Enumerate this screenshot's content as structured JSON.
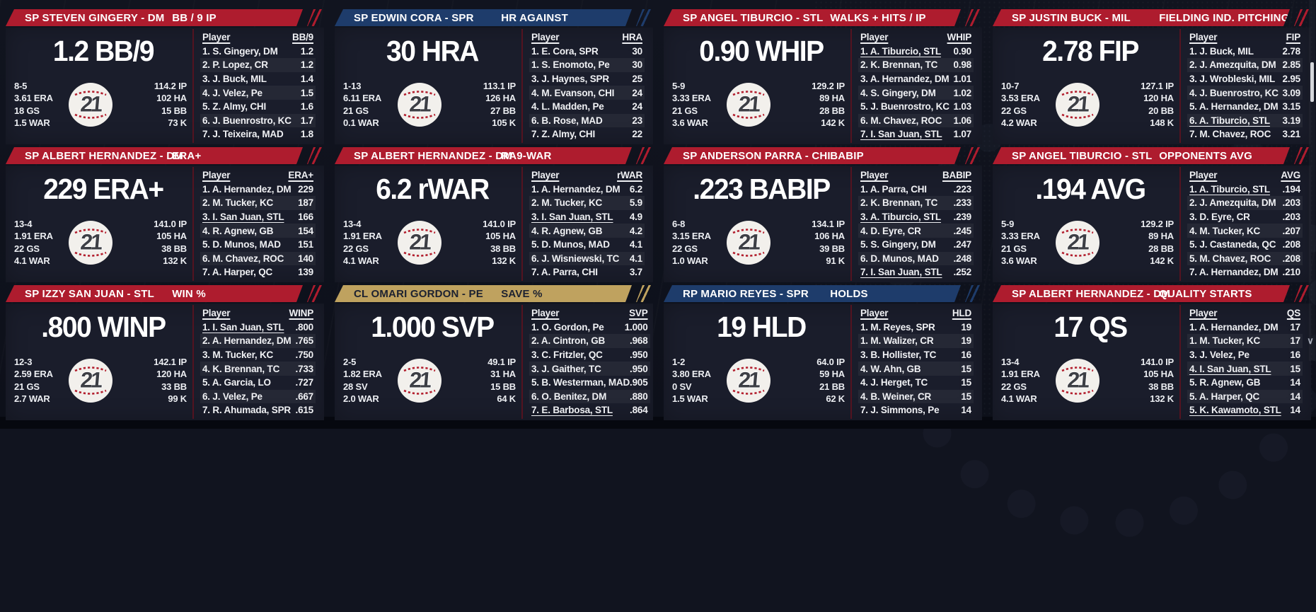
{
  "colors": {
    "red_header": "#ae1c2e",
    "navy_header": "#1e3c6b",
    "tan_header": "#bfa25f",
    "panel_bg": "#1a1d2b",
    "page_bg": "#11141f",
    "divider": "#531320",
    "ball_stitch": "#b3202f"
  },
  "icons": {
    "scroll_down_arrow": "∨",
    "baseball_icon": "baseball with number"
  },
  "panels": [
    {
      "title": "SP STEVEN GINGERY - DM",
      "category": "BB / 9 IP",
      "theme": "red",
      "big_stat": "1.2 BB/9",
      "ball_number": "21",
      "left_stats": [
        "8-5",
        "3.61 ERA",
        "18 GS",
        "1.5 WAR"
      ],
      "right_stats": [
        "114.2 IP",
        "102 HA",
        "15 BB",
        "73 K"
      ],
      "table": {
        "name_header": "Player",
        "stat_header": "BB/9",
        "rows": [
          {
            "name": "1. S. Gingery, DM",
            "value": "1.2",
            "highlight": false
          },
          {
            "name": "2. P. Lopez, CR",
            "value": "1.2",
            "highlight": false
          },
          {
            "name": "3. J. Buck, MIL",
            "value": "1.4",
            "highlight": false
          },
          {
            "name": "4. J. Velez, Pe",
            "value": "1.5",
            "highlight": false
          },
          {
            "name": "5. Z. Almy, CHI",
            "value": "1.6",
            "highlight": false
          },
          {
            "name": "6. J. Buenrostro, KC",
            "value": "1.7",
            "highlight": false
          },
          {
            "name": "7. J. Teixeira, MAD",
            "value": "1.8",
            "highlight": false
          }
        ]
      }
    },
    {
      "title": "SP EDWIN CORA - SPR",
      "category": "HR AGAINST",
      "theme": "navy",
      "big_stat": "30 HRA",
      "ball_number": "21",
      "left_stats": [
        "1-13",
        "6.11 ERA",
        "21 GS",
        "0.1 WAR"
      ],
      "right_stats": [
        "113.1 IP",
        "126 HA",
        "27 BB",
        "105 K"
      ],
      "table": {
        "name_header": "Player",
        "stat_header": "HRA",
        "rows": [
          {
            "name": "1. E. Cora, SPR",
            "value": "30",
            "highlight": false
          },
          {
            "name": "1. S. Enomoto, Pe",
            "value": "30",
            "highlight": false
          },
          {
            "name": "3. J. Haynes, SPR",
            "value": "25",
            "highlight": false
          },
          {
            "name": "4. M. Evanson, CHI",
            "value": "24",
            "highlight": false
          },
          {
            "name": "4. L. Madden, Pe",
            "value": "24",
            "highlight": false
          },
          {
            "name": "6. B. Rose, MAD",
            "value": "23",
            "highlight": false
          },
          {
            "name": "7. Z. Almy, CHI",
            "value": "22",
            "highlight": false
          }
        ]
      }
    },
    {
      "title": "SP ANGEL TIBURCIO - STL",
      "category": "WALKS + HITS / IP",
      "theme": "red",
      "big_stat": "0.90 WHIP",
      "ball_number": "21",
      "left_stats": [
        "5-9",
        "3.33 ERA",
        "21 GS",
        "3.6 WAR"
      ],
      "right_stats": [
        "129.2 IP",
        "89 HA",
        "28 BB",
        "142 K"
      ],
      "table": {
        "name_header": "Player",
        "stat_header": "WHIP",
        "rows": [
          {
            "name": "1. A. Tiburcio, STL",
            "value": "0.90",
            "highlight": true
          },
          {
            "name": "2. K. Brennan, TC",
            "value": "0.98",
            "highlight": false
          },
          {
            "name": "3. A. Hernandez, DM",
            "value": "1.01",
            "highlight": false
          },
          {
            "name": "4. S. Gingery, DM",
            "value": "1.02",
            "highlight": false
          },
          {
            "name": "5. J. Buenrostro, KC",
            "value": "1.03",
            "highlight": false
          },
          {
            "name": "6. M. Chavez, ROC",
            "value": "1.06",
            "highlight": false
          },
          {
            "name": "7. I. San Juan, STL",
            "value": "1.07",
            "highlight": true
          }
        ]
      }
    },
    {
      "title": "SP JUSTIN BUCK - MIL",
      "category": "FIELDING IND. PITCHING",
      "theme": "red",
      "big_stat": "2.78 FIP",
      "ball_number": "21",
      "left_stats": [
        "10-7",
        "3.53 ERA",
        "22 GS",
        "4.2 WAR"
      ],
      "right_stats": [
        "127.1 IP",
        "120 HA",
        "20 BB",
        "148 K"
      ],
      "table": {
        "name_header": "Player",
        "stat_header": "FIP",
        "rows": [
          {
            "name": "1. J. Buck, MIL",
            "value": "2.78",
            "highlight": false
          },
          {
            "name": "2. J. Amezquita, DM",
            "value": "2.85",
            "highlight": false
          },
          {
            "name": "3. J. Wrobleski, MIL",
            "value": "2.95",
            "highlight": false
          },
          {
            "name": "4. J. Buenrostro, KC",
            "value": "3.09",
            "highlight": false
          },
          {
            "name": "5. A. Hernandez, DM",
            "value": "3.15",
            "highlight": false
          },
          {
            "name": "6. A. Tiburcio, STL",
            "value": "3.19",
            "highlight": true
          },
          {
            "name": "7. M. Chavez, ROC",
            "value": "3.21",
            "highlight": false
          }
        ]
      }
    },
    {
      "title": "SP ALBERT HERNANDEZ - DM",
      "category": "ERA+",
      "theme": "red",
      "big_stat": "229 ERA+",
      "ball_number": "21",
      "left_stats": [
        "13-4",
        "1.91 ERA",
        "22 GS",
        "4.1 WAR"
      ],
      "right_stats": [
        "141.0 IP",
        "105 HA",
        "38 BB",
        "132 K"
      ],
      "table": {
        "name_header": "Player",
        "stat_header": "ERA+",
        "rows": [
          {
            "name": "1. A. Hernandez, DM",
            "value": "229",
            "highlight": false
          },
          {
            "name": "2. M. Tucker, KC",
            "value": "187",
            "highlight": false
          },
          {
            "name": "3. I. San Juan, STL",
            "value": "166",
            "highlight": true
          },
          {
            "name": "4. R. Agnew, GB",
            "value": "154",
            "highlight": false
          },
          {
            "name": "5. D. Munos, MAD",
            "value": "151",
            "highlight": false
          },
          {
            "name": "6. M. Chavez, ROC",
            "value": "140",
            "highlight": false
          },
          {
            "name": "7. A. Harper, QC",
            "value": "139",
            "highlight": false
          }
        ]
      }
    },
    {
      "title": "SP ALBERT HERNANDEZ - DM",
      "category": "RA9-WAR",
      "theme": "red",
      "big_stat": "6.2 rWAR",
      "ball_number": "21",
      "left_stats": [
        "13-4",
        "1.91 ERA",
        "22 GS",
        "4.1 WAR"
      ],
      "right_stats": [
        "141.0 IP",
        "105 HA",
        "38 BB",
        "132 K"
      ],
      "table": {
        "name_header": "Player",
        "stat_header": "rWAR",
        "rows": [
          {
            "name": "1. A. Hernandez, DM",
            "value": "6.2",
            "highlight": false
          },
          {
            "name": "2. M. Tucker, KC",
            "value": "5.9",
            "highlight": false
          },
          {
            "name": "3. I. San Juan, STL",
            "value": "4.9",
            "highlight": true
          },
          {
            "name": "4. R. Agnew, GB",
            "value": "4.2",
            "highlight": false
          },
          {
            "name": "5. D. Munos, MAD",
            "value": "4.1",
            "highlight": false
          },
          {
            "name": "6. J. Wisniewski, TC",
            "value": "4.1",
            "highlight": false
          },
          {
            "name": "7. A. Parra, CHI",
            "value": "3.7",
            "highlight": false
          }
        ]
      }
    },
    {
      "title": "SP ANDERSON PARRA - CHI",
      "category": "BABIP",
      "theme": "red",
      "big_stat": ".223 BABIP",
      "ball_number": "21",
      "left_stats": [
        "6-8",
        "3.15 ERA",
        "22 GS",
        "1.0 WAR"
      ],
      "right_stats": [
        "134.1 IP",
        "106 HA",
        "39 BB",
        "91 K"
      ],
      "table": {
        "name_header": "Player",
        "stat_header": "BABIP",
        "rows": [
          {
            "name": "1. A. Parra, CHI",
            "value": ".223",
            "highlight": false
          },
          {
            "name": "2. K. Brennan, TC",
            "value": ".233",
            "highlight": false
          },
          {
            "name": "3. A. Tiburcio, STL",
            "value": ".239",
            "highlight": true
          },
          {
            "name": "4. D. Eyre, CR",
            "value": ".245",
            "highlight": false
          },
          {
            "name": "5. S. Gingery, DM",
            "value": ".247",
            "highlight": false
          },
          {
            "name": "6. D. Munos, MAD",
            "value": ".248",
            "highlight": false
          },
          {
            "name": "7. I. San Juan, STL",
            "value": ".252",
            "highlight": true
          }
        ]
      }
    },
    {
      "title": "SP ANGEL TIBURCIO - STL",
      "category": "OPPONENTS AVG",
      "theme": "red",
      "big_stat": ".194 AVG",
      "ball_number": "21",
      "left_stats": [
        "5-9",
        "3.33 ERA",
        "21 GS",
        "3.6 WAR"
      ],
      "right_stats": [
        "129.2 IP",
        "89 HA",
        "28 BB",
        "142 K"
      ],
      "table": {
        "name_header": "Player",
        "stat_header": "AVG",
        "rows": [
          {
            "name": "1. A. Tiburcio, STL",
            "value": ".194",
            "highlight": true
          },
          {
            "name": "2. J. Amezquita, DM",
            "value": ".203",
            "highlight": false
          },
          {
            "name": "3. D. Eyre, CR",
            "value": ".203",
            "highlight": false
          },
          {
            "name": "4. M. Tucker, KC",
            "value": ".207",
            "highlight": false
          },
          {
            "name": "5. J. Castaneda, QC",
            "value": ".208",
            "highlight": false
          },
          {
            "name": "5. M. Chavez, ROC",
            "value": ".208",
            "highlight": false
          },
          {
            "name": "7. A. Hernandez, DM",
            "value": ".210",
            "highlight": false
          }
        ]
      }
    },
    {
      "title": "SP IZZY SAN JUAN - STL",
      "category": "WIN %",
      "theme": "red",
      "big_stat": ".800 WINP",
      "ball_number": "21",
      "left_stats": [
        "12-3",
        "2.59 ERA",
        "21 GS",
        "2.7 WAR"
      ],
      "right_stats": [
        "142.1 IP",
        "120 HA",
        "33 BB",
        "99 K"
      ],
      "table": {
        "name_header": "Player",
        "stat_header": "WINP",
        "rows": [
          {
            "name": "1. I. San Juan, STL",
            "value": ".800",
            "highlight": true
          },
          {
            "name": "2. A. Hernandez, DM",
            "value": ".765",
            "highlight": false
          },
          {
            "name": "3. M. Tucker, KC",
            "value": ".750",
            "highlight": false
          },
          {
            "name": "4. K. Brennan, TC",
            "value": ".733",
            "highlight": false
          },
          {
            "name": "5. A. Garcia, LO",
            "value": ".727",
            "highlight": false
          },
          {
            "name": "6. J. Velez, Pe",
            "value": ".667",
            "highlight": false
          },
          {
            "name": "7. R. Ahumada, SPR",
            "value": ".615",
            "highlight": false
          }
        ]
      }
    },
    {
      "title": "CL OMARI GORDON - PE",
      "category": "SAVE %",
      "theme": "tan",
      "big_stat": "1.000 SVP",
      "ball_number": "21",
      "left_stats": [
        "2-5",
        "1.82 ERA",
        "28 SV",
        "2.0 WAR"
      ],
      "right_stats": [
        "49.1 IP",
        "31 HA",
        "15 BB",
        "64 K"
      ],
      "table": {
        "name_header": "Player",
        "stat_header": "SVP",
        "rows": [
          {
            "name": "1. O. Gordon, Pe",
            "value": "1.000",
            "highlight": false
          },
          {
            "name": "2. A. Cintron, GB",
            "value": ".968",
            "highlight": false
          },
          {
            "name": "3. C. Fritzler, QC",
            "value": ".950",
            "highlight": false
          },
          {
            "name": "3. J. Gaither, TC",
            "value": ".950",
            "highlight": false
          },
          {
            "name": "5. B. Westerman, MAD",
            "value": ".905",
            "highlight": false
          },
          {
            "name": "6. O. Benitez, DM",
            "value": ".880",
            "highlight": false
          },
          {
            "name": "7. E. Barbosa, STL",
            "value": ".864",
            "highlight": true
          }
        ]
      }
    },
    {
      "title": "RP MARIO REYES - SPR",
      "category": "HOLDS",
      "theme": "navy",
      "big_stat": "19 HLD",
      "ball_number": "21",
      "left_stats": [
        "1-2",
        "3.80 ERA",
        "0 SV",
        "1.5 WAR"
      ],
      "right_stats": [
        "64.0 IP",
        "59 HA",
        "21 BB",
        "62 K"
      ],
      "table": {
        "name_header": "Player",
        "stat_header": "HLD",
        "rows": [
          {
            "name": "1. M. Reyes, SPR",
            "value": "19",
            "highlight": false
          },
          {
            "name": "1. M. Walizer, CR",
            "value": "19",
            "highlight": false
          },
          {
            "name": "3. B. Hollister, TC",
            "value": "16",
            "highlight": false
          },
          {
            "name": "4. W. Ahn, GB",
            "value": "15",
            "highlight": false
          },
          {
            "name": "4. J. Herget, TC",
            "value": "15",
            "highlight": false
          },
          {
            "name": "4. B. Weiner, CR",
            "value": "15",
            "highlight": false
          },
          {
            "name": "7. J. Simmons, Pe",
            "value": "14",
            "highlight": false
          }
        ]
      }
    },
    {
      "title": "SP ALBERT HERNANDEZ - DM",
      "category": "QUALITY STARTS",
      "theme": "red",
      "big_stat": "17 QS",
      "ball_number": "21",
      "left_stats": [
        "13-4",
        "1.91 ERA",
        "22 GS",
        "4.1 WAR"
      ],
      "right_stats": [
        "141.0 IP",
        "105 HA",
        "38 BB",
        "132 K"
      ],
      "table": {
        "name_header": "Player",
        "stat_header": "QS",
        "rows": [
          {
            "name": "1. A. Hernandez, DM",
            "value": "17",
            "highlight": false
          },
          {
            "name": "1. M. Tucker, KC",
            "value": "17",
            "highlight": false
          },
          {
            "name": "3. J. Velez, Pe",
            "value": "16",
            "highlight": false
          },
          {
            "name": "4. I. San Juan, STL",
            "value": "15",
            "highlight": true
          },
          {
            "name": "5. R. Agnew, GB",
            "value": "14",
            "highlight": false
          },
          {
            "name": "5. A. Harper, QC",
            "value": "14",
            "highlight": false
          },
          {
            "name": "5. K. Kawamoto, STL",
            "value": "14",
            "highlight": true
          }
        ]
      }
    }
  ]
}
